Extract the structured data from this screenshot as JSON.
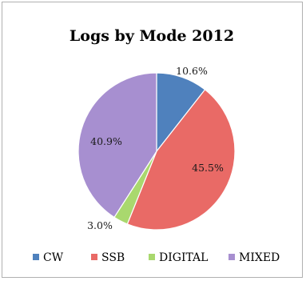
{
  "chart_data": {
    "type": "pie",
    "title": "Logs by Mode 2012",
    "categories": [
      "CW",
      "SSB",
      "DIGITAL",
      "MIXED"
    ],
    "values": [
      10.6,
      45.5,
      3.0,
      40.9
    ],
    "data_labels": [
      "10.6%",
      "45.5%",
      "3.0%",
      "40.9%"
    ],
    "colors": [
      "#4f81bd",
      "#e96a66",
      "#a9d86e",
      "#a78fd0"
    ],
    "start_angle_deg": 0,
    "direction": "clockwise",
    "legend_position": "bottom"
  }
}
